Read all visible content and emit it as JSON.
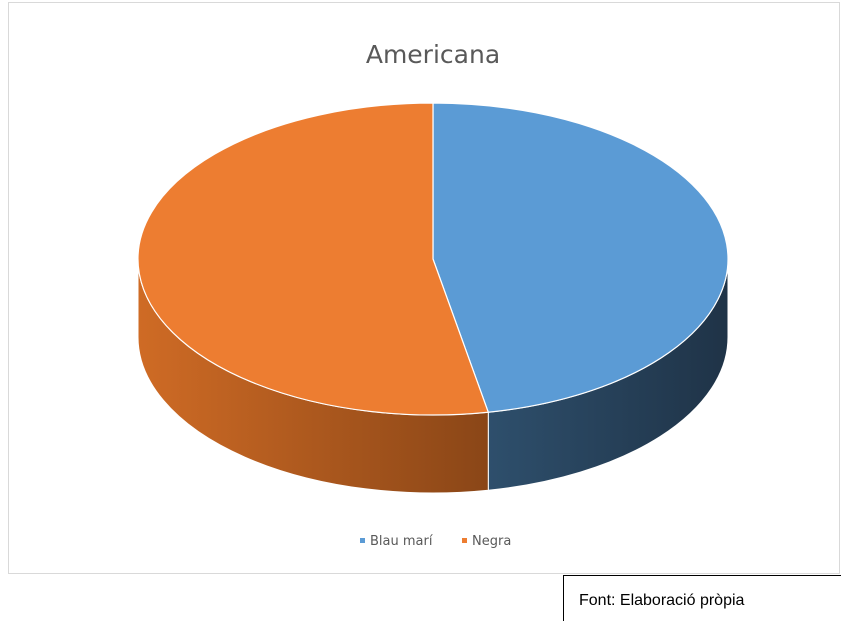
{
  "chart_data": {
    "type": "pie",
    "title": "Americana",
    "categories": [
      "Blau marí",
      "Negra"
    ],
    "values": [
      47,
      53
    ],
    "colors": [
      "#5b9bd5",
      "#ed7d31"
    ],
    "side_colors": [
      "#243f57",
      "#b9601f"
    ],
    "legend_position": "bottom",
    "style": "3d-pie"
  },
  "source": {
    "text": "Font: Elaboració pròpia"
  }
}
